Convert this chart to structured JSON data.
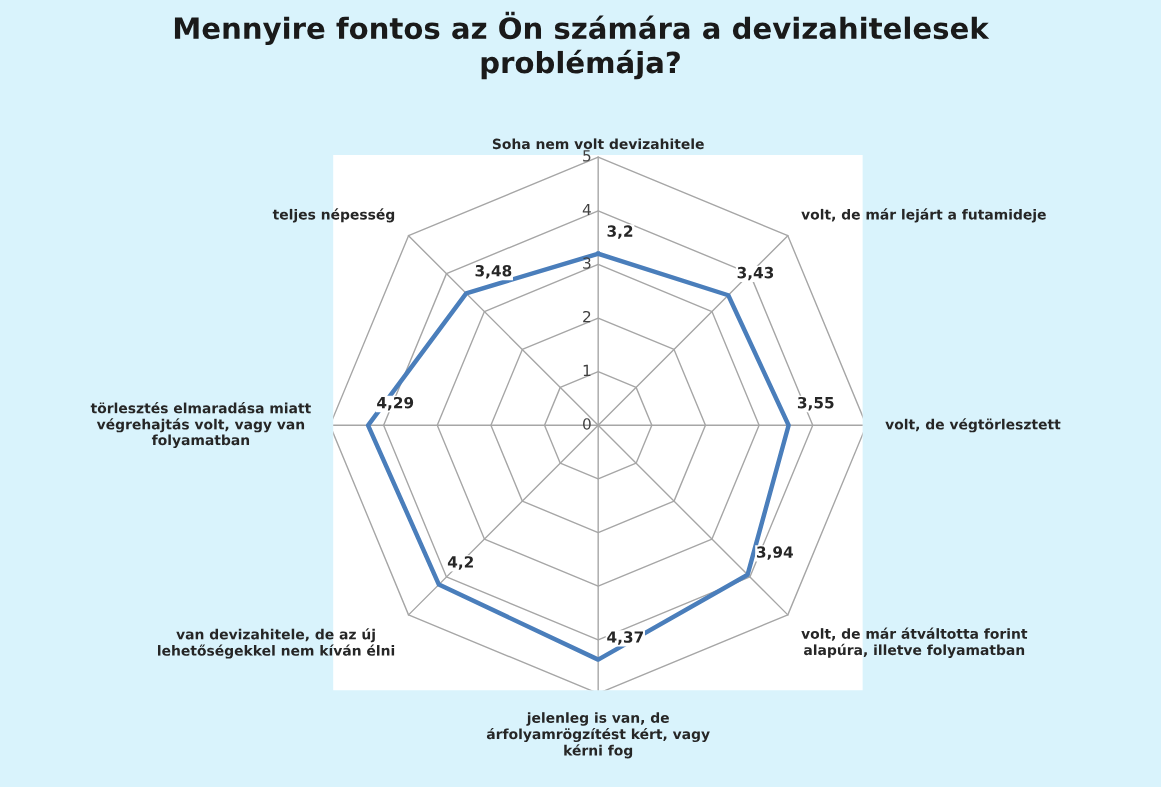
{
  "chart_data": {
    "type": "radar",
    "title": "Mennyire fontos az Ön számára a devizahitelesek\nproblémája?",
    "categories": [
      "Soha nem volt devizahitele",
      "volt, de már lejárt a futamideje",
      "volt, de végtörlesztett",
      "volt, de már átváltotta forint\nalapúra, illetve folyamatban",
      "jelenleg is van, de\nárfolyamrögzítést kért, vagy\nkérni fog",
      "van devizahitele, de az új\nlehetőségekkel nem kíván élni",
      "törlesztés elmaradása miatt\nvégrehajtás volt, vagy van\nfolyamatban",
      "teljes népesség"
    ],
    "series": [
      {
        "color": "#4a7ebb",
        "values": [
          3.2,
          3.43,
          3.55,
          3.94,
          4.37,
          4.2,
          4.29,
          3.48
        ],
        "value_labels": [
          "3,2",
          "3,43",
          "3,55",
          "3,94",
          "4,37",
          "4,2",
          "4,29",
          "3,48"
        ]
      }
    ],
    "ylim": [
      0,
      5
    ],
    "yticks": [
      0,
      1,
      2,
      3,
      4,
      5
    ],
    "grid": true,
    "marker": "none",
    "line_style": "solid"
  }
}
